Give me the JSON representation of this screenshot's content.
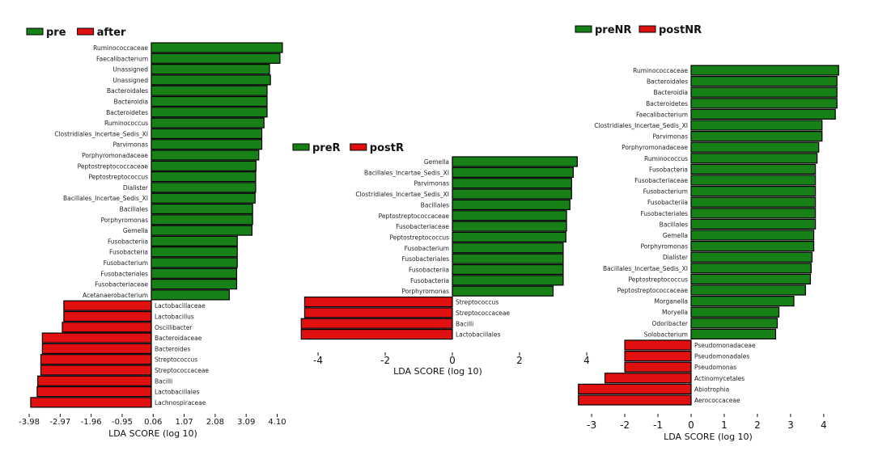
{
  "chart_data": [
    {
      "type": "bar",
      "orientation": "horizontal",
      "legend": [
        {
          "name": "pre",
          "color": "#178017"
        },
        {
          "name": "after",
          "color": "#e01010"
        }
      ],
      "xlabel": "LDA SCORE (log 10)",
      "xticks": [
        "-3.98",
        "-2.97",
        "-1.96",
        "-0.95",
        "0.06",
        "1.07",
        "2.08",
        "3.09",
        "4.10"
      ],
      "tick_values": [
        -3.98,
        -2.97,
        -1.96,
        -0.95,
        0.06,
        1.07,
        2.08,
        3.09,
        4.1
      ],
      "xlim": [
        -4.2,
        4.5
      ],
      "positive_color": "#178017",
      "negative_color": "#e01010",
      "categories": [
        "Ruminococcaceae",
        "Faecalibacterium",
        "Unassigned",
        "Unassigned",
        "Bacteroidales",
        "Bacteroidia",
        "Bacteroidetes",
        "Ruminococcus",
        "Clostridiales_Incertae_Sedis_XI",
        "Parvimonas",
        "Porphyromonadaceae",
        "Peptostreptococcaceae",
        "Peptostreptococcus",
        "Dialister",
        "Bacillales_Incertae_Sedis_XI",
        "Bacillales",
        "Porphyromonas",
        "Gemella",
        "Fusobacteriia",
        "Fusobacteria",
        "Fusobacterium",
        "Fusobacteriales",
        "Fusobacteriaceae",
        "Acetanaerobacterium",
        "Lactobacillaceae",
        "Lactobacillus",
        "Oscillibacter",
        "Bacteroidaceae",
        "Bacteroides",
        "Streptococcus",
        "Streptococcaceae",
        "Bacilli",
        "Lactobacillales",
        "Lachnospiraceae"
      ],
      "values": [
        4.27,
        4.19,
        3.85,
        3.88,
        3.77,
        3.77,
        3.77,
        3.67,
        3.6,
        3.6,
        3.5,
        3.41,
        3.4,
        3.4,
        3.38,
        3.3,
        3.3,
        3.28,
        2.8,
        2.8,
        2.8,
        2.78,
        2.78,
        2.54,
        -2.85,
        -2.85,
        -2.9,
        -3.55,
        -3.55,
        -3.6,
        -3.6,
        -3.7,
        -3.72,
        -3.93
      ]
    },
    {
      "type": "bar",
      "orientation": "horizontal",
      "legend": [
        {
          "name": "preR",
          "color": "#178017"
        },
        {
          "name": "postR",
          "color": "#e01010"
        }
      ],
      "xlabel": "LDA SCORE (log 10)",
      "xticks": [
        "-4",
        "-2",
        "0",
        "2",
        "4"
      ],
      "tick_values": [
        -4,
        -2,
        0,
        2,
        4
      ],
      "xlim": [
        -4.6,
        4.1
      ],
      "positive_color": "#178017",
      "negative_color": "#e01010",
      "categories": [
        "Gemella",
        "Bacillales_Incertae_Sedis_XI",
        "Parvimonas",
        "Clostridiales_Incertae_Sedis_XI",
        "Bacillales",
        "Peptostreptococcaceae",
        "Fusobacteriaceae",
        "Peptostreptococcus",
        "Fusobacterium",
        "Fusobacteriales",
        "Fusobacteriia",
        "Fusobacteria",
        "Porphyromonas",
        "Streptococcus",
        "Streptococcaceae",
        "Bacilli",
        "Lactobacillales"
      ],
      "values": [
        3.72,
        3.6,
        3.55,
        3.55,
        3.5,
        3.4,
        3.4,
        3.38,
        3.3,
        3.3,
        3.3,
        3.3,
        3.0,
        -4.4,
        -4.4,
        -4.5,
        -4.5
      ]
    },
    {
      "type": "bar",
      "orientation": "horizontal",
      "legend": [
        {
          "name": "preNR",
          "color": "#178017"
        },
        {
          "name": "postNR",
          "color": "#e01010"
        }
      ],
      "xlabel": "LDA SCORE (log 10)",
      "xticks": [
        "-3",
        "-2",
        "-1",
        "0",
        "1",
        "2",
        "3",
        "4"
      ],
      "tick_values": [
        -3,
        -2,
        -1,
        0,
        1,
        2,
        3,
        4
      ],
      "xlim": [
        -3.7,
        4.6
      ],
      "positive_color": "#178017",
      "negative_color": "#e01010",
      "categories": [
        "Ruminococcaceae",
        "Bacteroidales",
        "Bacteroidia",
        "Bacteroidetes",
        "Faecalibacterium",
        "Clostridiales_Incertae_Sedis_XI",
        "Parvimonas",
        "Porphyromonadaceae",
        "Ruminococcus",
        "Fusobacteria",
        "Fusobacteriaceae",
        "Fusobacterium",
        "Fusobacteriia",
        "Fusobacteriales",
        "Bacillales",
        "Gemella",
        "Porphyromonas",
        "Dialister",
        "Bacillales_Incertae_Sedis_XI",
        "Peptostreptococcus",
        "Peptostreptococcaceae",
        "Morganella",
        "Moryella",
        "Odoribacter",
        "Solobacterium",
        "Pseudomonadaceae",
        "Pseudomonadales",
        "Pseudomonas",
        "Actinomycetales",
        "Abiotrophia",
        "Aerococcaceae"
      ],
      "values": [
        4.45,
        4.4,
        4.4,
        4.4,
        4.35,
        3.95,
        3.95,
        3.85,
        3.8,
        3.75,
        3.75,
        3.75,
        3.75,
        3.75,
        3.75,
        3.7,
        3.7,
        3.65,
        3.62,
        3.6,
        3.45,
        3.1,
        2.65,
        2.6,
        2.55,
        -2.0,
        -2.0,
        -2.0,
        -2.6,
        -3.4,
        -3.4
      ]
    }
  ]
}
